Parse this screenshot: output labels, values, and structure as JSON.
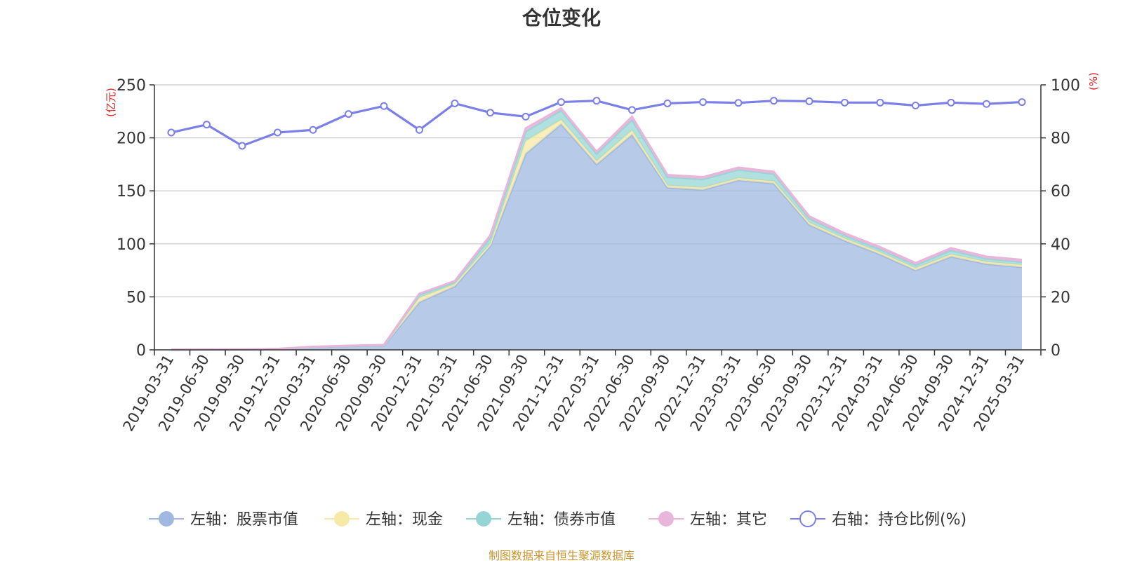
{
  "chart_data": {
    "type": "area",
    "title": "仓位变化",
    "left_axis_unit": "(亿元)",
    "right_axis_unit": "(%)",
    "categories": [
      "2019-03-31",
      "2019-06-30",
      "2019-09-30",
      "2019-12-31",
      "2020-03-31",
      "2020-06-30",
      "2020-09-30",
      "2020-12-31",
      "2021-03-31",
      "2021-06-30",
      "2021-09-30",
      "2021-12-31",
      "2022-03-31",
      "2022-06-30",
      "2022-09-30",
      "2022-12-31",
      "2023-03-31",
      "2023-06-30",
      "2023-09-30",
      "2023-12-31",
      "2024-03-31",
      "2024-06-30",
      "2024-09-30",
      "2024-12-31",
      "2025-03-31"
    ],
    "left_ylim": [
      0,
      250
    ],
    "left_ticks": [
      "0",
      "50",
      "100",
      "150",
      "200",
      "250"
    ],
    "right_ylim": [
      0,
      100
    ],
    "right_ticks": [
      "0",
      "20",
      "40",
      "60",
      "80",
      "100"
    ],
    "grid": true,
    "legend_position": "bottom",
    "series": [
      {
        "name": "左轴：股票市值",
        "axis": "left",
        "stacked": true,
        "color": "#9fb9e0",
        "values": [
          0.2,
          0.3,
          0.4,
          0.8,
          2.5,
          3.5,
          4.0,
          45,
          60,
          98,
          185,
          213,
          175,
          203,
          153,
          151,
          160,
          157,
          118,
          103,
          90,
          75,
          88,
          81,
          78
        ]
      },
      {
        "name": "左轴：现金",
        "axis": "left",
        "stacked": true,
        "color": "#f7e9a6",
        "values": [
          0.05,
          0.05,
          0.05,
          0.1,
          0.3,
          0.3,
          0.4,
          4,
          2,
          2,
          12,
          4,
          3,
          4,
          2,
          2,
          2,
          2,
          2,
          2,
          2,
          2,
          2,
          2,
          2
        ]
      },
      {
        "name": "左轴：债券市值",
        "axis": "left",
        "stacked": true,
        "color": "#95d5d5",
        "values": [
          0,
          0,
          0,
          0,
          0,
          0,
          0,
          3,
          2,
          6,
          9,
          9,
          7,
          10,
          8,
          8,
          8,
          7,
          4,
          3,
          3,
          3,
          4,
          3,
          3
        ]
      },
      {
        "name": "左轴：其它",
        "axis": "left",
        "stacked": true,
        "color": "#eab5da",
        "values": [
          0.05,
          0.05,
          0.05,
          0.1,
          0.2,
          0.2,
          0.3,
          1,
          1,
          2,
          3,
          2,
          2,
          3,
          2,
          2,
          2,
          2,
          2,
          2,
          2,
          2,
          2,
          2,
          2
        ]
      },
      {
        "name": "右轴：持仓比例(%)",
        "axis": "right",
        "stacked": false,
        "color": "#7a7fea",
        "values": [
          82,
          85,
          77,
          82,
          83,
          89,
          92,
          83,
          93,
          89.5,
          88,
          93.5,
          94,
          90.5,
          93,
          93.5,
          93.2,
          94,
          93.8,
          93.3,
          93.3,
          92.2,
          93.3,
          92.8,
          93.5
        ]
      }
    ]
  },
  "footer": "制图数据来自恒生聚源数据库"
}
